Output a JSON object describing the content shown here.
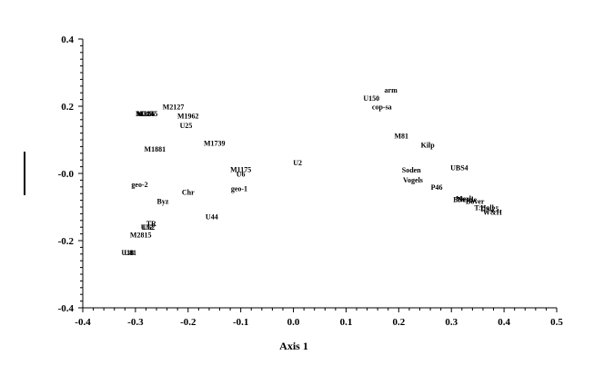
{
  "chart_data": {
    "type": "scatter",
    "title": "",
    "xlabel": "Axis 1",
    "ylabel": "",
    "xlim": [
      -0.4,
      0.5
    ],
    "ylim": [
      -0.4,
      0.4
    ],
    "x_ticks": [
      "-0.4",
      "-0.3",
      "-0.2",
      "-0.1",
      "0.0",
      "0.1",
      "0.2",
      "0.3",
      "0.4",
      "0.5"
    ],
    "y_ticks": [
      "0.4",
      "0.2",
      "-0.0",
      "-0.2",
      "-0.4"
    ],
    "y_tick_values": [
      0.4,
      0.2,
      0.0,
      -0.2,
      -0.4
    ],
    "grid": false,
    "legend": "none",
    "points": [
      {
        "label": "arm",
        "x": 0.185,
        "y": 0.248
      },
      {
        "label": "U150",
        "x": 0.148,
        "y": 0.225
      },
      {
        "label": "cop-sa",
        "x": 0.168,
        "y": 0.198
      },
      {
        "label": "M81",
        "x": 0.205,
        "y": 0.112
      },
      {
        "label": "Kilp",
        "x": 0.255,
        "y": 0.085
      },
      {
        "label": "UBS4",
        "x": 0.315,
        "y": 0.018
      },
      {
        "label": "Soden",
        "x": 0.224,
        "y": 0.011
      },
      {
        "label": "Vogels",
        "x": 0.227,
        "y": -0.019
      },
      {
        "label": "P46",
        "x": 0.272,
        "y": -0.041
      },
      {
        "label": "Merk",
        "x": 0.325,
        "y": -0.074
      },
      {
        "label": "Bov",
        "x": 0.315,
        "y": -0.077
      },
      {
        "label": "Nestle",
        "x": 0.33,
        "y": -0.077
      },
      {
        "label": "Bover",
        "x": 0.345,
        "y": -0.082
      },
      {
        "label": "T.Holl",
        "x": 0.362,
        "y": -0.101
      },
      {
        "label": "T.S.25",
        "x": 0.372,
        "y": -0.105
      },
      {
        "label": "W&H",
        "x": 0.378,
        "y": -0.115
      },
      {
        "label": "U2",
        "x": 0.008,
        "y": 0.032
      },
      {
        "label": "M1175",
        "x": -0.1,
        "y": 0.012
      },
      {
        "label": "U6",
        "x": -0.1,
        "y": -0.002
      },
      {
        "label": "geo-1",
        "x": -0.103,
        "y": -0.045
      },
      {
        "label": "M2127",
        "x": -0.228,
        "y": 0.198
      },
      {
        "label": "M1962",
        "x": -0.2,
        "y": 0.172
      },
      {
        "label": "U25",
        "x": -0.204,
        "y": 0.143
      },
      {
        "label": "M1739",
        "x": -0.15,
        "y": 0.09
      },
      {
        "label": "M1881",
        "x": -0.263,
        "y": 0.073
      },
      {
        "label": "M266",
        "x": -0.28,
        "y": 0.178
      },
      {
        "label": "M245",
        "x": -0.283,
        "y": 0.178
      },
      {
        "label": "M1245",
        "x": -0.278,
        "y": 0.178
      },
      {
        "label": "geo-2",
        "x": -0.292,
        "y": -0.032
      },
      {
        "label": "Chr",
        "x": -0.2,
        "y": -0.055
      },
      {
        "label": "Byz",
        "x": -0.248,
        "y": -0.082
      },
      {
        "label": "U44",
        "x": -0.155,
        "y": -0.128
      },
      {
        "label": "TR",
        "x": -0.27,
        "y": -0.148
      },
      {
        "label": "U62",
        "x": -0.275,
        "y": -0.16
      },
      {
        "label": "U52",
        "x": -0.278,
        "y": -0.16
      },
      {
        "label": "M2815",
        "x": -0.29,
        "y": -0.182
      },
      {
        "label": "U18",
        "x": -0.315,
        "y": -0.235
      },
      {
        "label": "U81",
        "x": -0.31,
        "y": -0.235
      }
    ]
  }
}
